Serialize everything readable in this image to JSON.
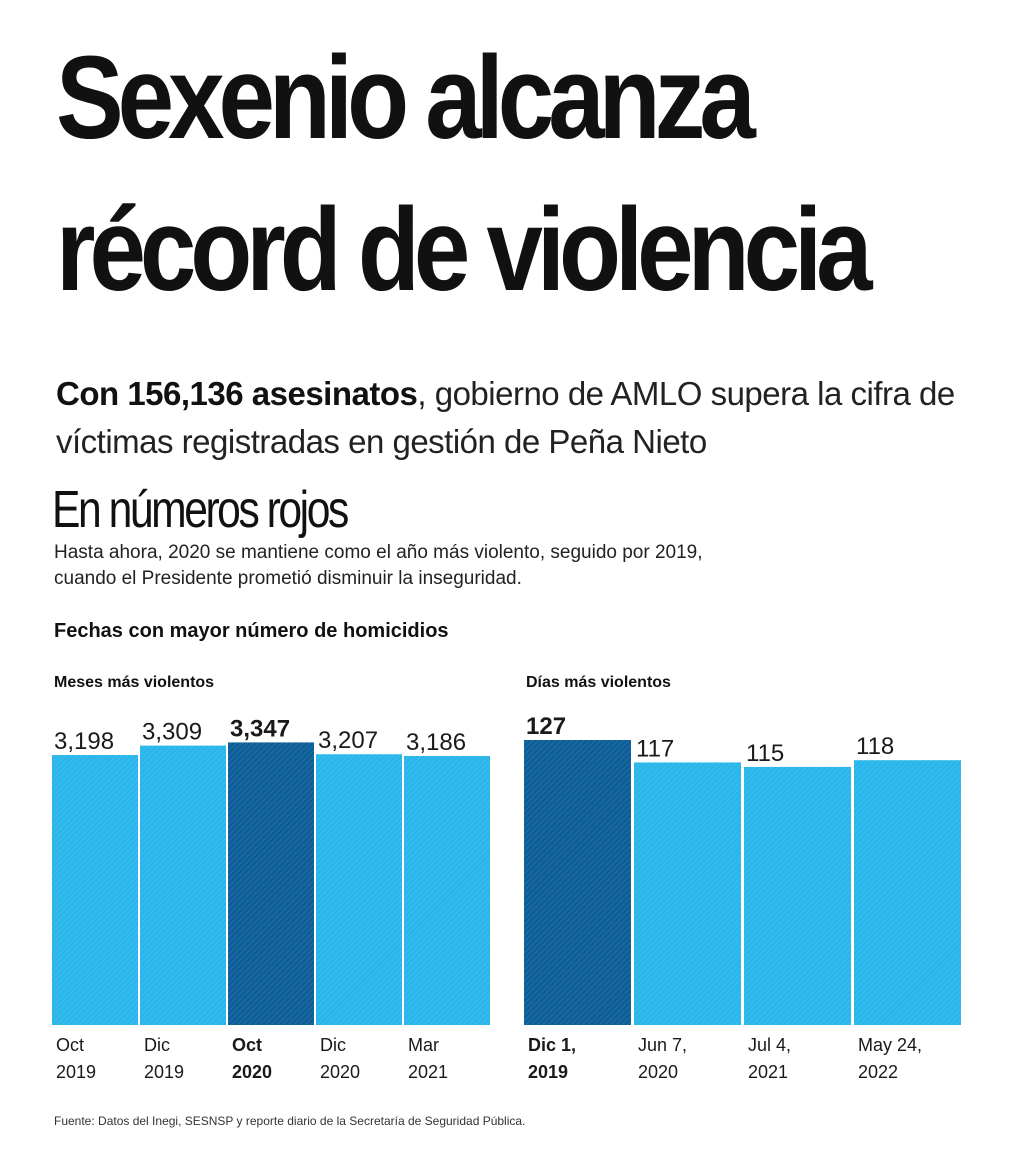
{
  "headline": {
    "line1": "Sexenio alcanza",
    "line2": "récord de violencia"
  },
  "subheadline": {
    "bold": "Con 156,136 asesinatos",
    "rest": ", gobierno de AMLO supera la cifra de víctimas registradas en gestión de Peña Nieto"
  },
  "section": {
    "title": "En números rojos",
    "description": "Hasta ahora, 2020 se mantiene como el año más violento, seguido por 2019, cuando el Presidente prometió disminuir la inseguridad."
  },
  "chart_heading": "Fechas con mayor número de homicidios",
  "colors": {
    "bar": "#29b6ea",
    "highlight": "#0d5e97",
    "text": "#1a1a1a"
  },
  "chart_data": [
    {
      "type": "bar",
      "title": "Meses más violentos",
      "categories": [
        [
          "Oct",
          "2019"
        ],
        [
          "Dic",
          "2019"
        ],
        [
          "Oct",
          "2020"
        ],
        [
          "Dic",
          "2020"
        ],
        [
          "Mar",
          "2021"
        ]
      ],
      "values": [
        3198,
        3309,
        3347,
        3207,
        3186
      ],
      "value_labels": [
        "3,198",
        "3,309",
        "3,347",
        "3,207",
        "3,186"
      ],
      "highlight_index": 2
    },
    {
      "type": "bar",
      "title": "Días más violentos",
      "categories": [
        [
          "Dic 1,",
          "2019"
        ],
        [
          "Jun 7,",
          "2020"
        ],
        [
          "Jul 4,",
          "2021"
        ],
        [
          "May 24,",
          "2022"
        ]
      ],
      "values": [
        127,
        117,
        115,
        118
      ],
      "value_labels": [
        "127",
        "117",
        "115",
        "118"
      ],
      "highlight_index": 0
    }
  ],
  "source": "Fuente: Datos del Inegi, SESNSP y reporte diario de la Secretaría de Seguridad Pública."
}
